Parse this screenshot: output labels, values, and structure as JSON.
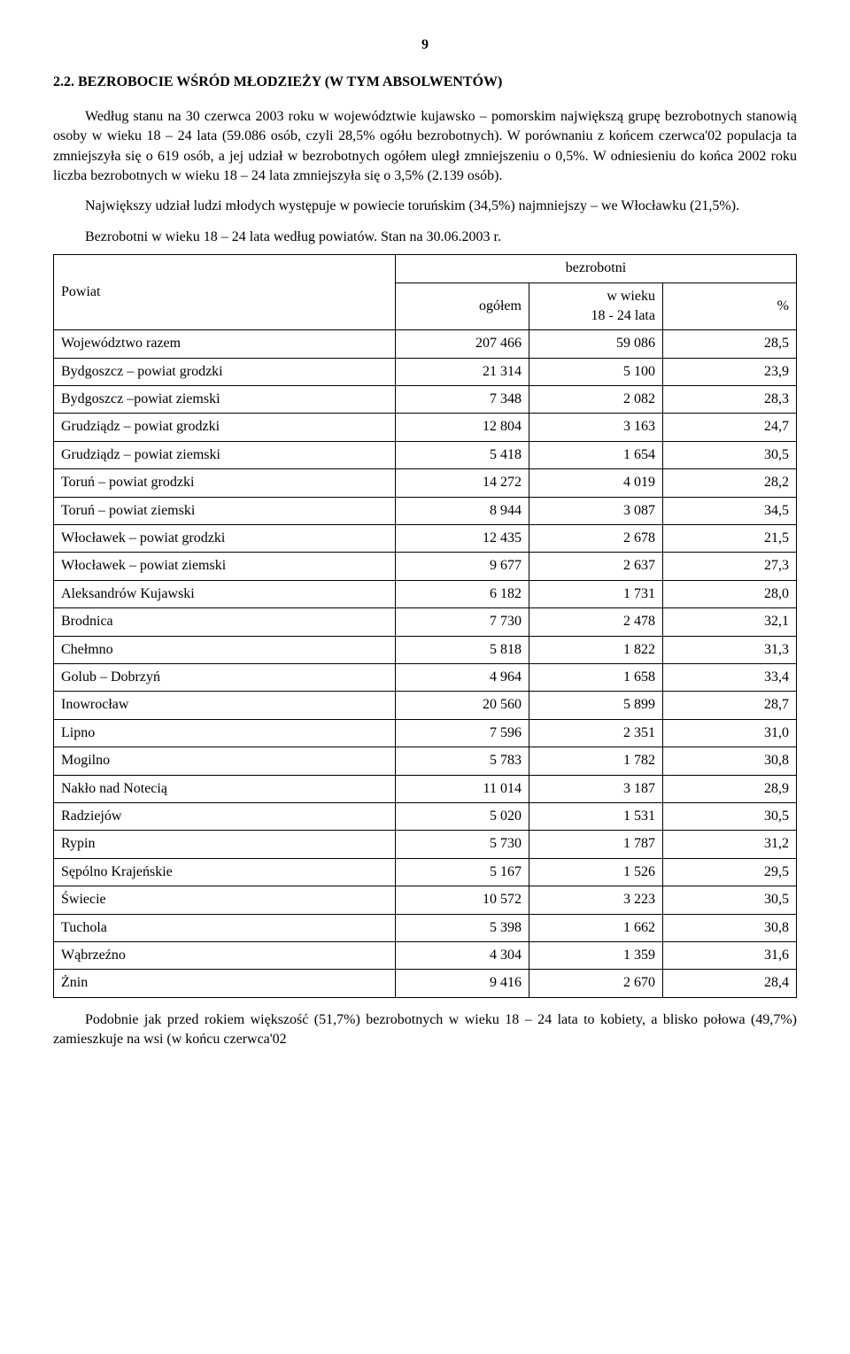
{
  "page_number": "9",
  "heading": "2.2.   BEZROBOCIE WŚRÓD MŁODZIEŻY (W TYM ABSOLWENTÓW)",
  "para1": "Według stanu na 30 czerwca 2003 roku w województwie kujawsko – pomorskim największą grupę bezrobotnych stanowią osoby w wieku 18 – 24 lata (59.086 osób, czyli 28,5% ogółu bezrobotnych). W porównaniu z końcem czerwca'02 populacja ta zmniejszyła się o 619 osób, a jej udział w bezrobotnych ogółem uległ zmniejszeniu o 0,5%. W odniesieniu do końca 2002 roku liczba bezrobotnych w wieku 18 – 24 lata zmniejszyła się o 3,5% (2.139 osób).",
  "para2": "Największy udział ludzi młodych występuje w powiecie toruńskim (34,5%) najmniejszy – we Włocławku (21,5%).",
  "table_caption": "Bezrobotni w wieku 18 – 24 lata według powiatów. Stan na 30.06.2003 r.",
  "table": {
    "header": {
      "col1": "Powiat",
      "group": "bezrobotni",
      "col2": "ogółem",
      "col3": "w wieku\n18 - 24 lata",
      "col4": "%"
    },
    "rows": [
      [
        "Województwo razem",
        "207 466",
        "59 086",
        "28,5"
      ],
      [
        "Bydgoszcz – powiat grodzki",
        "21 314",
        "5 100",
        "23,9"
      ],
      [
        "Bydgoszcz –powiat ziemski",
        "7 348",
        "2 082",
        "28,3"
      ],
      [
        "Grudziądz – powiat grodzki",
        "12 804",
        "3 163",
        "24,7"
      ],
      [
        "Grudziądz – powiat ziemski",
        "5 418",
        "1 654",
        "30,5"
      ],
      [
        "Toruń – powiat grodzki",
        "14 272",
        "4 019",
        "28,2"
      ],
      [
        "Toruń – powiat ziemski",
        "8 944",
        "3 087",
        "34,5"
      ],
      [
        "Włocławek – powiat grodzki",
        "12 435",
        "2 678",
        "21,5"
      ],
      [
        "Włocławek – powiat ziemski",
        "9 677",
        "2 637",
        "27,3"
      ],
      [
        "Aleksandrów Kujawski",
        "6 182",
        "1 731",
        "28,0"
      ],
      [
        "Brodnica",
        "7 730",
        "2 478",
        "32,1"
      ],
      [
        "Chełmno",
        "5 818",
        "1 822",
        "31,3"
      ],
      [
        "Golub – Dobrzyń",
        "4 964",
        "1 658",
        "33,4"
      ],
      [
        "Inowrocław",
        "20 560",
        "5 899",
        "28,7"
      ],
      [
        "Lipno",
        "7 596",
        "2 351",
        "31,0"
      ],
      [
        "Mogilno",
        "5 783",
        "1 782",
        "30,8"
      ],
      [
        "Nakło nad Notecią",
        "11 014",
        "3 187",
        "28,9"
      ],
      [
        "Radziejów",
        "5 020",
        "1 531",
        "30,5"
      ],
      [
        "Rypin",
        "5 730",
        "1 787",
        "31,2"
      ],
      [
        "Sępólno Krajeńskie",
        "5 167",
        "1 526",
        "29,5"
      ],
      [
        "Świecie",
        "10 572",
        "3 223",
        "30,5"
      ],
      [
        "Tuchola",
        "5 398",
        "1 662",
        "30,8"
      ],
      [
        "Wąbrzeźno",
        "4 304",
        "1 359",
        "31,6"
      ],
      [
        "Żnin",
        "9 416",
        "2 670",
        "28,4"
      ]
    ]
  },
  "footer_para": "Podobnie jak przed rokiem większość (51,7%) bezrobotnych w wieku 18 – 24 lata to kobiety, a blisko połowa (49,7%) zamieszkuje na wsi (w końcu czerwca'02"
}
